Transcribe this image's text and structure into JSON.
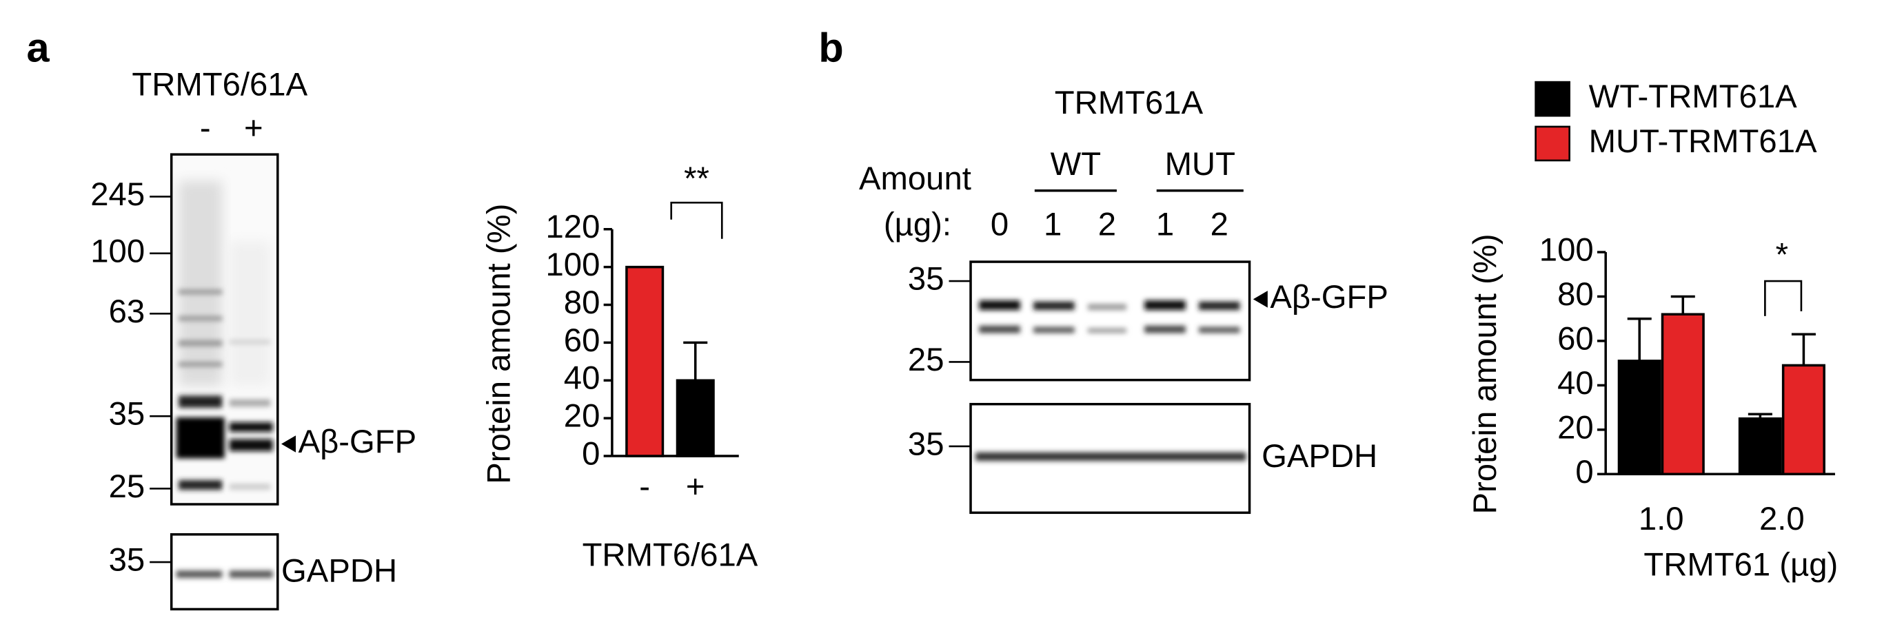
{
  "panels": [
    {
      "label": "a",
      "blot_title": "TRMT6/61A",
      "lanes": [
        "-",
        "+"
      ],
      "markers": [
        245,
        100,
        63,
        35,
        25
      ],
      "target": "Aβ-GFP",
      "control_marker": 35,
      "control": "GAPDH"
    },
    {
      "label": "b",
      "blot_title": "TRMT61A",
      "amount_label": "Amount",
      "unit_label": "(µg):",
      "groups": [
        "WT",
        "MUT"
      ],
      "lanes": [
        0,
        1,
        2,
        1,
        2
      ],
      "markers": [
        35,
        25
      ],
      "target": "Aβ-GFP",
      "control_marker": 35,
      "control": "GAPDH"
    }
  ],
  "chart_data": [
    {
      "type": "bar",
      "y_label": "Protein amount (%)",
      "x_label": "TRMT6/61A",
      "categories": [
        "-",
        "+"
      ],
      "values": [
        100,
        40
      ],
      "errors": [
        null,
        20
      ],
      "colors": [
        "#e42527",
        "#000000"
      ],
      "ylim": [
        0,
        120
      ],
      "yticks": [
        0,
        20,
        40,
        60,
        80,
        100,
        120
      ],
      "annotations": [
        "**"
      ]
    },
    {
      "type": "bar",
      "y_label": "Protein amount (%)",
      "x_label": "TRMT61 (µg)",
      "categories": [
        "1.0",
        "2.0"
      ],
      "series": [
        {
          "name": "WT-TRMT61A",
          "color": "#000000",
          "values": [
            51,
            25
          ],
          "errors": [
            19,
            2
          ]
        },
        {
          "name": "MUT-TRMT61A",
          "color": "#e42527",
          "values": [
            72,
            49
          ],
          "errors": [
            8,
            14
          ]
        }
      ],
      "ylim": [
        0,
        100
      ],
      "yticks": [
        0,
        20,
        40,
        60,
        80,
        100
      ],
      "annotations": [
        "*"
      ]
    }
  ]
}
